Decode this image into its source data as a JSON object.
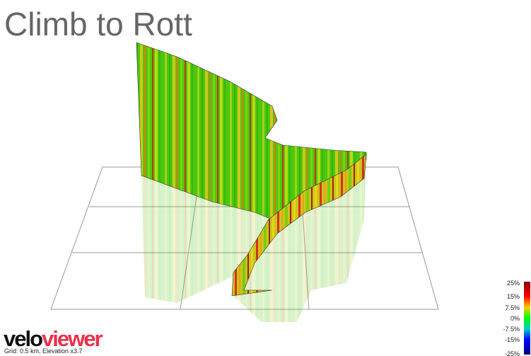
{
  "header": {
    "title": "Climb to Rott"
  },
  "legend": {
    "labels": [
      "25%",
      "15%",
      "7.5%",
      "0%",
      "-7.5%",
      "-15%",
      "-25%"
    ]
  },
  "footer": {
    "logo_left": "velo",
    "logo_right": "viewer",
    "caption": "Grid: 0.5 km, Elevation x3.7"
  }
}
